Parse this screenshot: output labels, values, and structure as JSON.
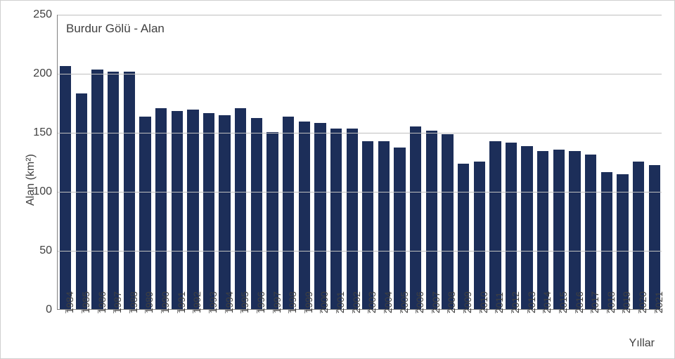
{
  "chart": {
    "type": "bar",
    "title": "Burdur Gölü - Alan",
    "title_fontsize": 17,
    "ylabel": "Alan (km²)",
    "xlabel": "Yıllar",
    "label_fontsize": 16,
    "tick_fontsize": 14,
    "x_tick_rotation_deg": -90,
    "background_color": "#ffffff",
    "grid_color": "#bfbfbf",
    "axis_color": "#808080",
    "bar_color": "#1c2e59",
    "bar_width_ratio": 0.72,
    "ylim": [
      0,
      250
    ],
    "ytick_step": 50,
    "categories": [
      "1984",
      "1985",
      "1986",
      "1987",
      "1988",
      "1989",
      "1990",
      "1991",
      "1992",
      "1993",
      "1994",
      "1995",
      "1996",
      "1997",
      "1998",
      "1999",
      "2000",
      "2001",
      "2002",
      "2003",
      "2004",
      "2005",
      "2006",
      "2007",
      "2008",
      "2009",
      "2010",
      "2011",
      "2012",
      "2013",
      "2014",
      "2015",
      "2016",
      "2017",
      "2018",
      "2019",
      "2020",
      "2021"
    ],
    "values": [
      206,
      183,
      203,
      201,
      201,
      163,
      170,
      168,
      169,
      166,
      164,
      170,
      162,
      150,
      163,
      159,
      158,
      153,
      153,
      142,
      142,
      137,
      155,
      151,
      148,
      123,
      125,
      142,
      141,
      138,
      134,
      135,
      134,
      131,
      116,
      114,
      125,
      122
    ]
  }
}
